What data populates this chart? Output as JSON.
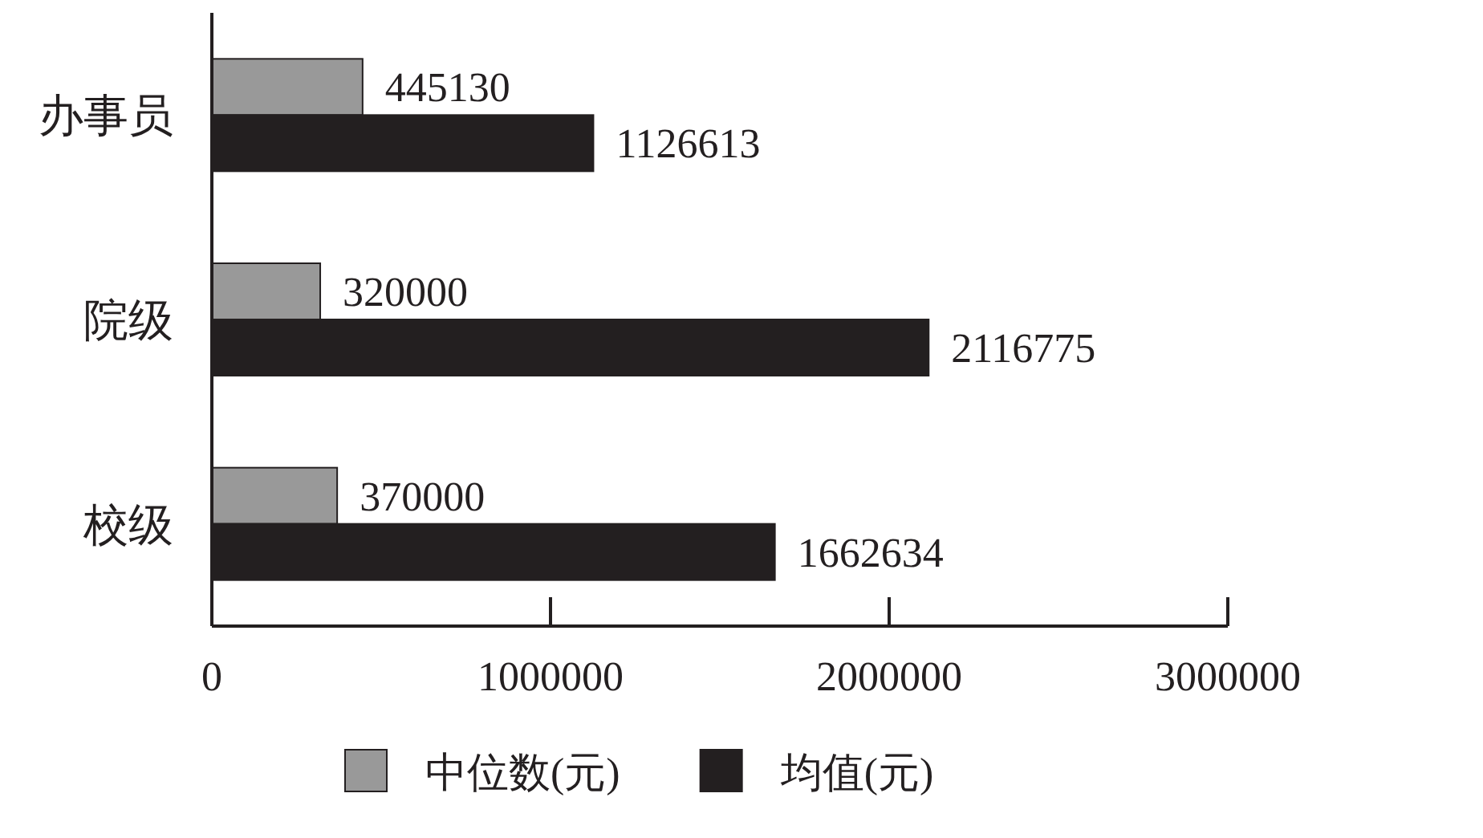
{
  "chart_data": {
    "type": "bar",
    "orientation": "horizontal",
    "categories": [
      "办事员",
      "院级",
      "校级"
    ],
    "series": [
      {
        "name": "中位数(元)",
        "color": "#999999",
        "values": [
          445130,
          320000,
          370000
        ]
      },
      {
        "name": "均值(元)",
        "color": "#231f20",
        "values": [
          1126613,
          2116775,
          1662634
        ]
      }
    ],
    "xlim": [
      0,
      3000000
    ],
    "xticks": [
      0,
      1000000,
      2000000,
      3000000
    ],
    "data_labels": true,
    "legend": "bottom",
    "grid": false
  }
}
